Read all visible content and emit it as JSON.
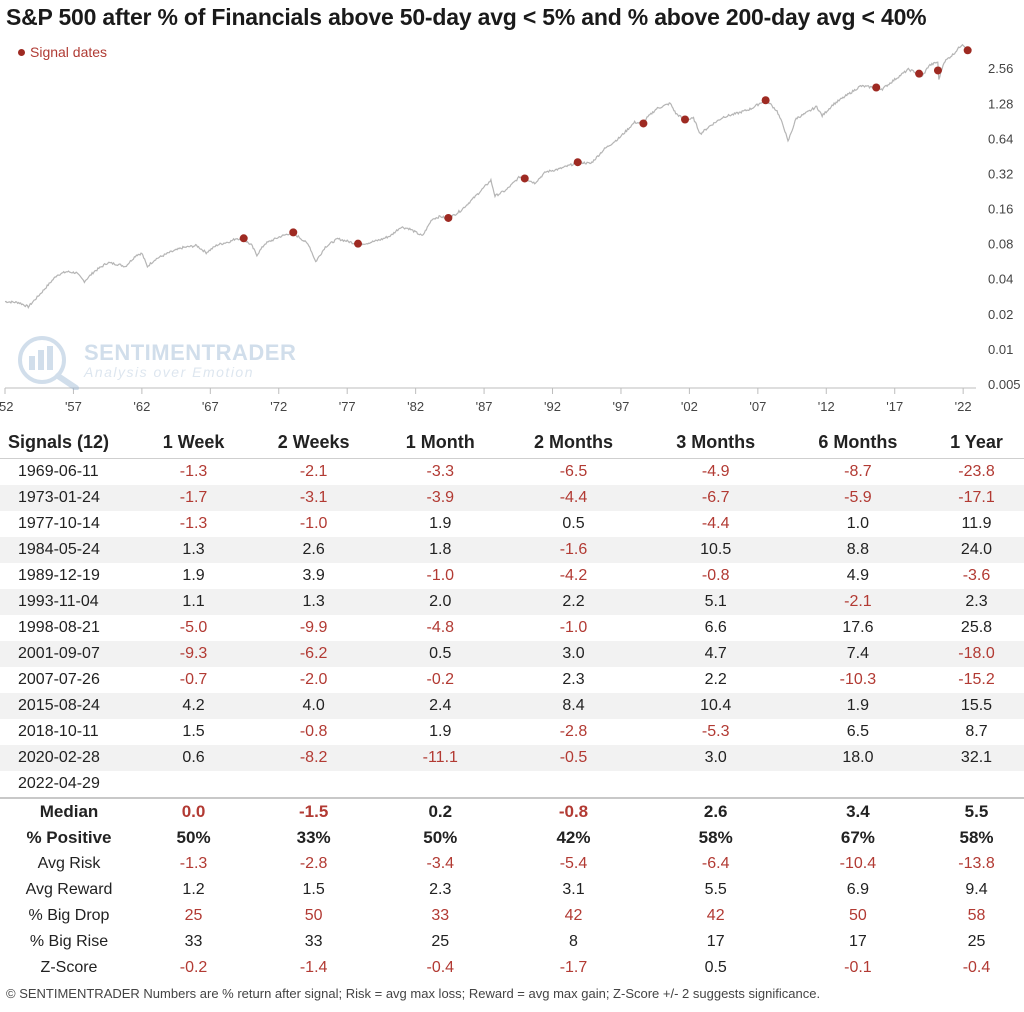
{
  "title": "S&P 500 after % of Financials above 50-day avg < 5% and % above 200-day avg < 40%",
  "legend_label": "Signal dates",
  "watermark": {
    "main": "SENTIMENTRADER",
    "sub": "Analysis over Emotion"
  },
  "colors": {
    "line": "#b5b5b5",
    "signal": "#9e2a22",
    "negative": "#b23a33",
    "positive": "#222222"
  },
  "chart_data": {
    "type": "line",
    "title": "S&P 500 after % of Financials above 50-day avg < 5% and % above 200-day avg < 40%",
    "y_scale": "log",
    "ylim": [
      0.005,
      4.3
    ],
    "y_ticks": [
      "2.56",
      "1.28",
      "0.64",
      "0.32",
      "0.16",
      "0.08",
      "0.04",
      "0.02",
      "0.01",
      "0.005"
    ],
    "y_tick_values": [
      2.56,
      1.28,
      0.64,
      0.32,
      0.16,
      0.08,
      0.04,
      0.02,
      0.01,
      0.005
    ],
    "x_ticks": [
      "'52",
      "'57",
      "'62",
      "'67",
      "'72",
      "'77",
      "'82",
      "'87",
      "'92",
      "'97",
      "'02",
      "'07",
      "'12",
      "'17",
      "'22"
    ],
    "x_tick_years": [
      1952,
      1957,
      1962,
      1967,
      1972,
      1977,
      1982,
      1987,
      1992,
      1997,
      2002,
      2007,
      2012,
      2017,
      2022
    ],
    "xlim": [
      1952.0,
      2022.5
    ],
    "series": [
      {
        "points": [
          [
            1952.0,
            0.0255
          ],
          [
            1953.0,
            0.025
          ],
          [
            1953.7,
            0.023
          ],
          [
            1954.5,
            0.029
          ],
          [
            1955.3,
            0.037
          ],
          [
            1955.8,
            0.043
          ],
          [
            1956.5,
            0.046
          ],
          [
            1957.2,
            0.045
          ],
          [
            1957.8,
            0.038
          ],
          [
            1958.5,
            0.046
          ],
          [
            1959.5,
            0.055
          ],
          [
            1960.3,
            0.053
          ],
          [
            1960.8,
            0.051
          ],
          [
            1961.6,
            0.064
          ],
          [
            1962.0,
            0.066
          ],
          [
            1962.4,
            0.051
          ],
          [
            1963.0,
            0.059
          ],
          [
            1964.0,
            0.067
          ],
          [
            1965.0,
            0.074
          ],
          [
            1966.0,
            0.077
          ],
          [
            1966.7,
            0.067
          ],
          [
            1967.5,
            0.078
          ],
          [
            1968.5,
            0.084
          ],
          [
            1968.9,
            0.089
          ],
          [
            1969.4,
            0.087
          ],
          [
            1970.0,
            0.078
          ],
          [
            1970.4,
            0.064
          ],
          [
            1971.0,
            0.08
          ],
          [
            1972.0,
            0.091
          ],
          [
            1972.9,
            0.099
          ],
          [
            1973.5,
            0.091
          ],
          [
            1974.2,
            0.078
          ],
          [
            1974.7,
            0.056
          ],
          [
            1975.4,
            0.075
          ],
          [
            1976.3,
            0.088
          ],
          [
            1977.0,
            0.084
          ],
          [
            1977.8,
            0.079
          ],
          [
            1978.5,
            0.081
          ],
          [
            1979.5,
            0.087
          ],
          [
            1980.2,
            0.094
          ],
          [
            1980.9,
            0.111
          ],
          [
            1981.5,
            0.108
          ],
          [
            1982.5,
            0.093
          ],
          [
            1983.2,
            0.13
          ],
          [
            1983.8,
            0.137
          ],
          [
            1984.4,
            0.131
          ],
          [
            1985.3,
            0.154
          ],
          [
            1986.3,
            0.2
          ],
          [
            1987.5,
            0.28
          ],
          [
            1987.8,
            0.205
          ],
          [
            1988.6,
            0.23
          ],
          [
            1989.6,
            0.3
          ],
          [
            1990.0,
            0.29
          ],
          [
            1990.7,
            0.265
          ],
          [
            1991.5,
            0.33
          ],
          [
            1992.5,
            0.35
          ],
          [
            1993.9,
            0.4
          ],
          [
            1994.8,
            0.39
          ],
          [
            1995.8,
            0.52
          ],
          [
            1996.9,
            0.65
          ],
          [
            1998.0,
            0.88
          ],
          [
            1998.6,
            0.86
          ],
          [
            1998.9,
            0.96
          ],
          [
            1999.6,
            1.15
          ],
          [
            2000.6,
            1.28
          ],
          [
            2001.0,
            1.05
          ],
          [
            2001.7,
            0.92
          ],
          [
            2002.3,
            0.95
          ],
          [
            2002.8,
            0.7
          ],
          [
            2003.5,
            0.82
          ],
          [
            2004.5,
            0.98
          ],
          [
            2005.5,
            1.05
          ],
          [
            2006.5,
            1.15
          ],
          [
            2007.6,
            1.38
          ],
          [
            2008.4,
            1.1
          ],
          [
            2008.9,
            0.8
          ],
          [
            2009.2,
            0.6
          ],
          [
            2009.8,
            0.95
          ],
          [
            2010.5,
            1.05
          ],
          [
            2011.3,
            1.2
          ],
          [
            2011.7,
            1.0
          ],
          [
            2012.5,
            1.25
          ],
          [
            2013.5,
            1.5
          ],
          [
            2014.5,
            1.8
          ],
          [
            2015.6,
            1.75
          ],
          [
            2016.1,
            1.7
          ],
          [
            2017.0,
            2.05
          ],
          [
            2018.0,
            2.5
          ],
          [
            2018.8,
            2.3
          ],
          [
            2018.98,
            2.15
          ],
          [
            2019.5,
            2.7
          ],
          [
            2020.15,
            2.9
          ],
          [
            2020.22,
            2.05
          ],
          [
            2020.6,
            2.9
          ],
          [
            2021.3,
            3.4
          ],
          [
            2021.95,
            4.15
          ],
          [
            2022.33,
            3.65
          ]
        ]
      }
    ],
    "signals": [
      {
        "x": 1969.44,
        "y": 0.089
      },
      {
        "x": 1973.06,
        "y": 0.1
      },
      {
        "x": 1977.79,
        "y": 0.08
      },
      {
        "x": 1984.39,
        "y": 0.133
      },
      {
        "x": 1989.97,
        "y": 0.29
      },
      {
        "x": 1993.84,
        "y": 0.4
      },
      {
        "x": 1998.64,
        "y": 0.86
      },
      {
        "x": 2001.68,
        "y": 0.93
      },
      {
        "x": 2007.57,
        "y": 1.36
      },
      {
        "x": 2015.65,
        "y": 1.75
      },
      {
        "x": 2018.78,
        "y": 2.3
      },
      {
        "x": 2020.16,
        "y": 2.45
      },
      {
        "x": 2022.33,
        "y": 3.65
      }
    ]
  },
  "table": {
    "headers": [
      "Signals (12)",
      "1 Week",
      "2 Weeks",
      "1 Month",
      "2 Months",
      "3 Months",
      "6 Months",
      "1 Year"
    ],
    "rows": [
      {
        "date": "1969-06-11",
        "values": [
          "-1.3",
          "-2.1",
          "-3.3",
          "-6.5",
          "-4.9",
          "-8.7",
          "-23.8"
        ]
      },
      {
        "date": "1973-01-24",
        "values": [
          "-1.7",
          "-3.1",
          "-3.9",
          "-4.4",
          "-6.7",
          "-5.9",
          "-17.1"
        ]
      },
      {
        "date": "1977-10-14",
        "values": [
          "-1.3",
          "-1.0",
          "1.9",
          "0.5",
          "-4.4",
          "1.0",
          "11.9"
        ]
      },
      {
        "date": "1984-05-24",
        "values": [
          "1.3",
          "2.6",
          "1.8",
          "-1.6",
          "10.5",
          "8.8",
          "24.0"
        ]
      },
      {
        "date": "1989-12-19",
        "values": [
          "1.9",
          "3.9",
          "-1.0",
          "-4.2",
          "-0.8",
          "4.9",
          "-3.6"
        ]
      },
      {
        "date": "1993-11-04",
        "values": [
          "1.1",
          "1.3",
          "2.0",
          "2.2",
          "5.1",
          "-2.1",
          "2.3"
        ]
      },
      {
        "date": "1998-08-21",
        "values": [
          "-5.0",
          "-9.9",
          "-4.8",
          "-1.0",
          "6.6",
          "17.6",
          "25.8"
        ]
      },
      {
        "date": "2001-09-07",
        "values": [
          "-9.3",
          "-6.2",
          "0.5",
          "3.0",
          "4.7",
          "7.4",
          "-18.0"
        ]
      },
      {
        "date": "2007-07-26",
        "values": [
          "-0.7",
          "-2.0",
          "-0.2",
          "2.3",
          "2.2",
          "-10.3",
          "-15.2"
        ]
      },
      {
        "date": "2015-08-24",
        "values": [
          "4.2",
          "4.0",
          "2.4",
          "8.4",
          "10.4",
          "1.9",
          "15.5"
        ]
      },
      {
        "date": "2018-10-11",
        "values": [
          "1.5",
          "-0.8",
          "1.9",
          "-2.8",
          "-5.3",
          "6.5",
          "8.7"
        ]
      },
      {
        "date": "2020-02-28",
        "values": [
          "0.6",
          "-8.2",
          "-11.1",
          "-0.5",
          "3.0",
          "18.0",
          "32.1"
        ]
      },
      {
        "date": "2022-04-29",
        "values": [
          "",
          "",
          "",
          "",
          "",
          "",
          ""
        ]
      }
    ],
    "summary": [
      {
        "label": "Median",
        "bold": true,
        "values": [
          "0.0",
          "-1.5",
          "0.2",
          "-0.8",
          "2.6",
          "3.4",
          "5.5"
        ],
        "colors": [
          "neg",
          "neg",
          "pos",
          "neg",
          "pos",
          "pos",
          "pos"
        ]
      },
      {
        "label": "% Positive",
        "bold": true,
        "values": [
          "50%",
          "33%",
          "50%",
          "42%",
          "58%",
          "67%",
          "58%"
        ],
        "colors": [
          "pos",
          "pos",
          "pos",
          "pos",
          "pos",
          "pos",
          "pos"
        ]
      },
      {
        "label": "Avg Risk",
        "bold": false,
        "values": [
          "-1.3",
          "-2.8",
          "-3.4",
          "-5.4",
          "-6.4",
          "-10.4",
          "-13.8"
        ],
        "colors": [
          "neg",
          "neg",
          "neg",
          "neg",
          "neg",
          "neg",
          "neg"
        ]
      },
      {
        "label": "Avg Reward",
        "bold": false,
        "values": [
          "1.2",
          "1.5",
          "2.3",
          "3.1",
          "5.5",
          "6.9",
          "9.4"
        ],
        "colors": [
          "pos",
          "pos",
          "pos",
          "pos",
          "pos",
          "pos",
          "pos"
        ]
      },
      {
        "label": "% Big Drop",
        "bold": false,
        "values": [
          "25",
          "50",
          "33",
          "42",
          "42",
          "50",
          "58"
        ],
        "colors": [
          "neg",
          "neg",
          "neg",
          "neg",
          "neg",
          "neg",
          "neg"
        ]
      },
      {
        "label": "% Big Rise",
        "bold": false,
        "values": [
          "33",
          "33",
          "25",
          "8",
          "17",
          "17",
          "25"
        ],
        "colors": [
          "pos",
          "pos",
          "pos",
          "pos",
          "pos",
          "pos",
          "pos"
        ]
      },
      {
        "label": "Z-Score",
        "bold": false,
        "values": [
          "-0.2",
          "-1.4",
          "-0.4",
          "-1.7",
          "0.5",
          "-0.1",
          "-0.4"
        ],
        "colors": [
          "neg",
          "neg",
          "neg",
          "neg",
          "pos",
          "neg",
          "neg"
        ]
      }
    ]
  },
  "footer": "© SENTIMENTRADER  Numbers are % return after signal; Risk = avg max loss; Reward = avg max gain; Z-Score +/- 2 suggests significance."
}
